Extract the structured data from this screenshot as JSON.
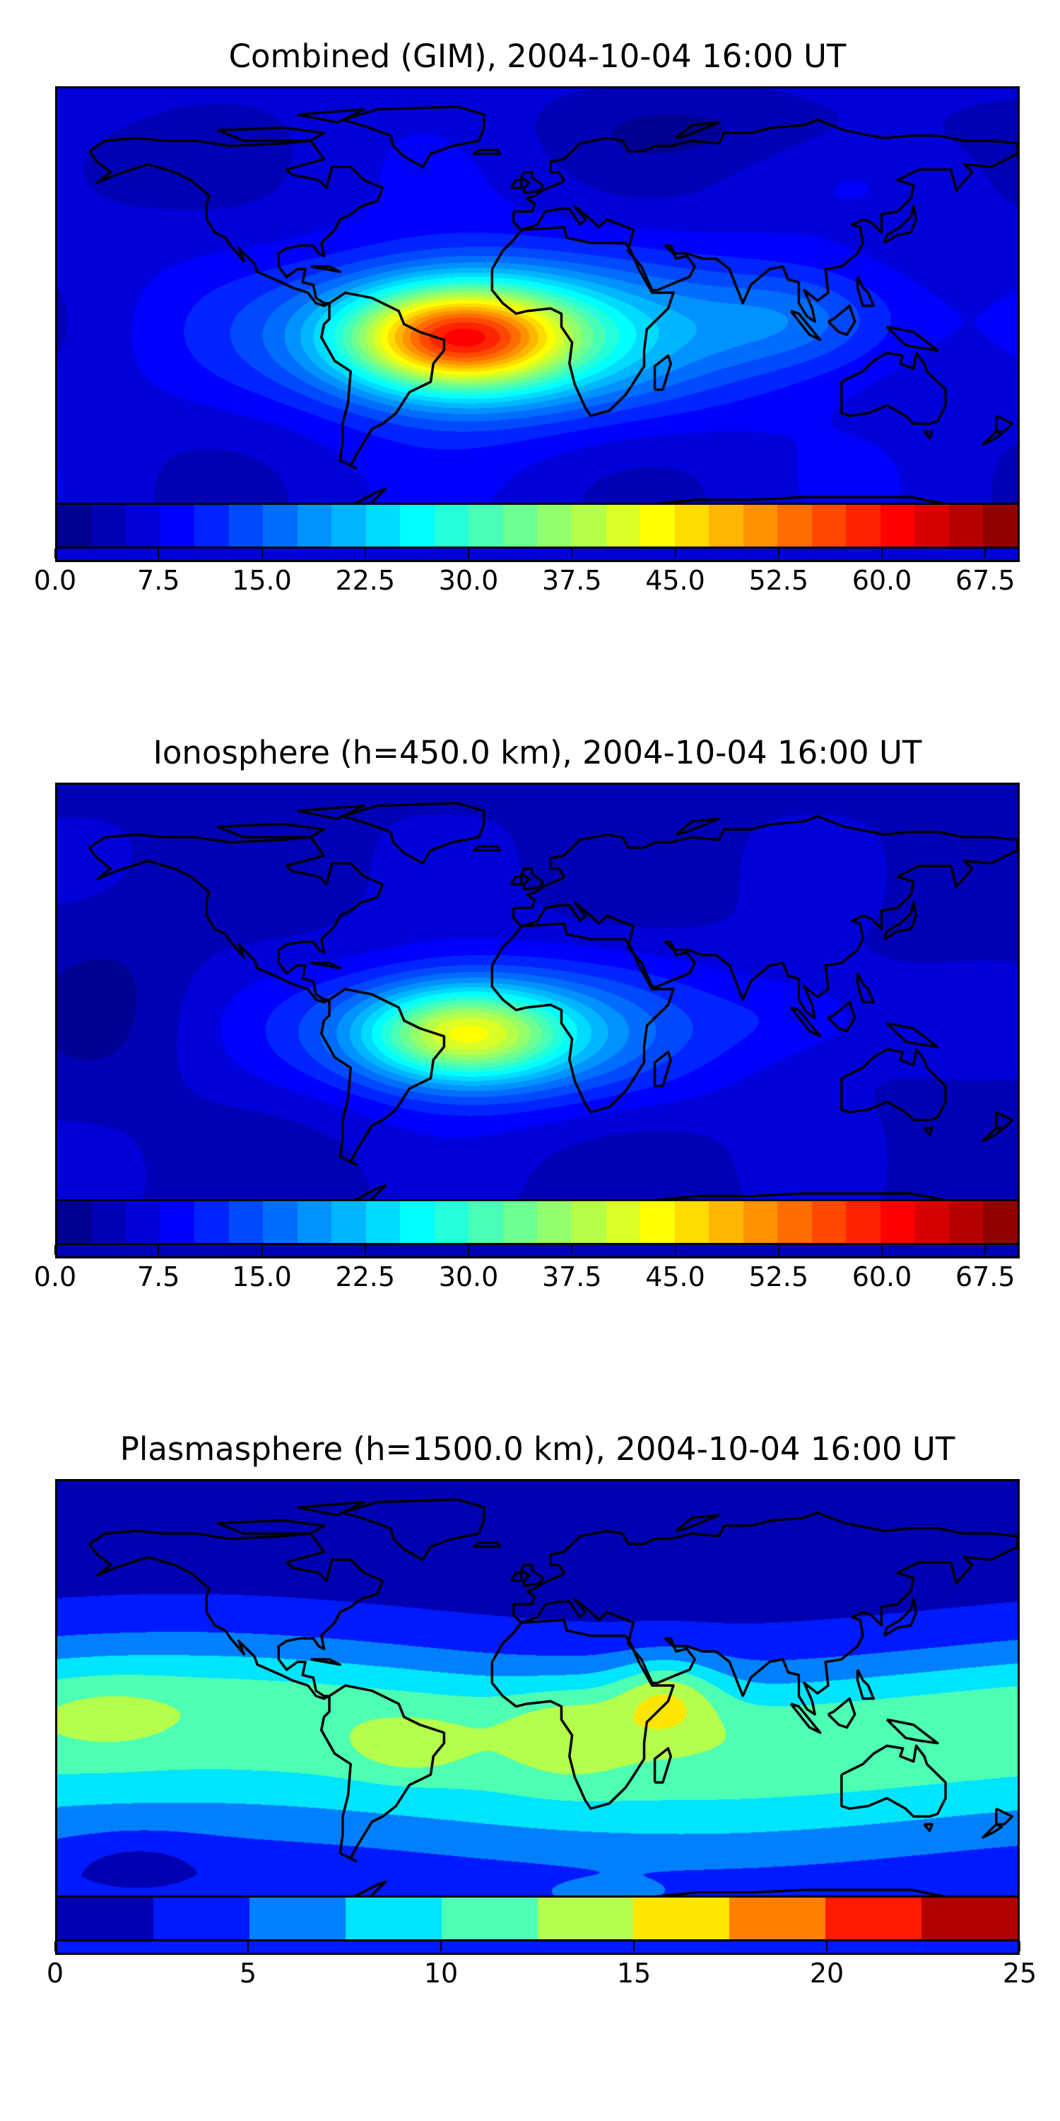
{
  "chart_data": [
    {
      "type": "heatmap",
      "title": "Combined (GIM), 2004-10-04 16:00 UT",
      "projection": "equirectangular world map with coastlines",
      "xlim": [
        -180,
        180
      ],
      "ylim": [
        -90,
        90
      ],
      "colormap": "jet",
      "levels_min": 0,
      "levels_max": 70,
      "level_step": 2.5,
      "colorbar_ticks": [
        "0.0",
        "7.5",
        "15.0",
        "22.5",
        "30.0",
        "37.5",
        "45.0",
        "52.5",
        "60.0",
        "67.5"
      ],
      "colorbar_tick_values": [
        0,
        7.5,
        15,
        22.5,
        30,
        37.5,
        45,
        52.5,
        60,
        67.5
      ],
      "peak": {
        "lon": -30,
        "lat": -5,
        "value": 62
      },
      "background_value": 7
    },
    {
      "type": "heatmap",
      "title": "Ionosphere  (h=450.0 km), 2004-10-04 16:00 UT",
      "projection": "equirectangular world map with coastlines",
      "xlim": [
        -180,
        180
      ],
      "ylim": [
        -90,
        90
      ],
      "colormap": "jet",
      "levels_min": 0,
      "levels_max": 70,
      "level_step": 2.5,
      "colorbar_ticks": [
        "0.0",
        "7.5",
        "15.0",
        "22.5",
        "30.0",
        "37.5",
        "45.0",
        "52.5",
        "60.0",
        "67.5"
      ],
      "colorbar_tick_values": [
        0,
        7.5,
        15,
        22.5,
        30,
        37.5,
        45,
        52.5,
        60,
        67.5
      ],
      "peak": {
        "lon": -28,
        "lat": -5,
        "value": 48
      },
      "background_value": 5
    },
    {
      "type": "heatmap",
      "title": "Plasmasphere (h=1500.0 km), 2004-10-04 16:00 UT",
      "projection": "equirectangular world map with coastlines",
      "xlim": [
        -180,
        180
      ],
      "ylim": [
        -90,
        90
      ],
      "colormap": "jet",
      "levels_min": 0,
      "levels_max": 25,
      "level_step": 2.5,
      "colorbar_ticks": [
        "0",
        "5",
        "10",
        "15",
        "20",
        "25"
      ],
      "colorbar_tick_values": [
        0,
        5,
        10,
        15,
        20,
        25
      ],
      "peak": {
        "lon": 48,
        "lat": 8,
        "value": 19
      },
      "background_value": 3
    }
  ]
}
